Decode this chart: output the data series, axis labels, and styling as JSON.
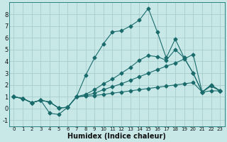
{
  "bg_color": "#c8e8e8",
  "grid_color": "#a8cccc",
  "line_color": "#1a6b6b",
  "xlabel": "Humidex (Indice chaleur)",
  "xlim": [
    -0.5,
    23.5
  ],
  "ylim": [
    -1.5,
    9.0
  ],
  "xticks": [
    0,
    1,
    2,
    3,
    4,
    5,
    6,
    7,
    8,
    9,
    10,
    11,
    12,
    13,
    14,
    15,
    16,
    17,
    18,
    19,
    20,
    21,
    22,
    23
  ],
  "yticks": [
    -1,
    0,
    1,
    2,
    3,
    4,
    5,
    6,
    7,
    8
  ],
  "series1_x": [
    0,
    1,
    2,
    3,
    4,
    5,
    6,
    7,
    8,
    9,
    10,
    11,
    12,
    13,
    14,
    15,
    16,
    17,
    18,
    19,
    20,
    21,
    22,
    23
  ],
  "series1_y": [
    1.0,
    0.85,
    0.5,
    0.7,
    0.55,
    0.05,
    0.1,
    1.0,
    1.05,
    1.1,
    1.2,
    1.3,
    1.4,
    1.5,
    1.6,
    1.7,
    1.8,
    1.9,
    2.0,
    2.1,
    2.2,
    1.4,
    1.5,
    1.5
  ],
  "series2_x": [
    0,
    1,
    2,
    3,
    4,
    5,
    6,
    7,
    8,
    9,
    10,
    11,
    12,
    13,
    14,
    15,
    16,
    17,
    18,
    19,
    20,
    21,
    22,
    23
  ],
  "series2_y": [
    1.0,
    0.85,
    0.5,
    0.7,
    0.55,
    0.05,
    0.1,
    1.0,
    1.1,
    1.3,
    1.6,
    1.85,
    2.1,
    2.4,
    2.7,
    3.0,
    3.3,
    3.6,
    3.85,
    4.2,
    4.6,
    1.4,
    1.9,
    1.5
  ],
  "series3_x": [
    0,
    1,
    2,
    3,
    4,
    5,
    6,
    7,
    8,
    9,
    10,
    11,
    12,
    13,
    14,
    15,
    16,
    17,
    18,
    19,
    20,
    21,
    22,
    23
  ],
  "series3_y": [
    1.0,
    0.85,
    0.5,
    0.7,
    0.55,
    0.05,
    0.1,
    1.0,
    1.2,
    1.6,
    2.1,
    2.5,
    3.0,
    3.5,
    4.1,
    4.5,
    4.4,
    4.1,
    5.0,
    4.3,
    3.0,
    1.4,
    2.0,
    1.5
  ],
  "series4_x": [
    0,
    1,
    2,
    3,
    4,
    5,
    6,
    7,
    8,
    9,
    10,
    11,
    12,
    13,
    14,
    15,
    16,
    17,
    18,
    19,
    20,
    21,
    22,
    23
  ],
  "series4_y": [
    1.0,
    0.85,
    0.5,
    0.7,
    -0.4,
    -0.5,
    0.1,
    1.0,
    2.8,
    4.3,
    5.5,
    6.5,
    6.6,
    7.0,
    7.5,
    8.5,
    6.5,
    4.3,
    5.9,
    4.3,
    3.0,
    1.4,
    2.0,
    1.5
  ]
}
